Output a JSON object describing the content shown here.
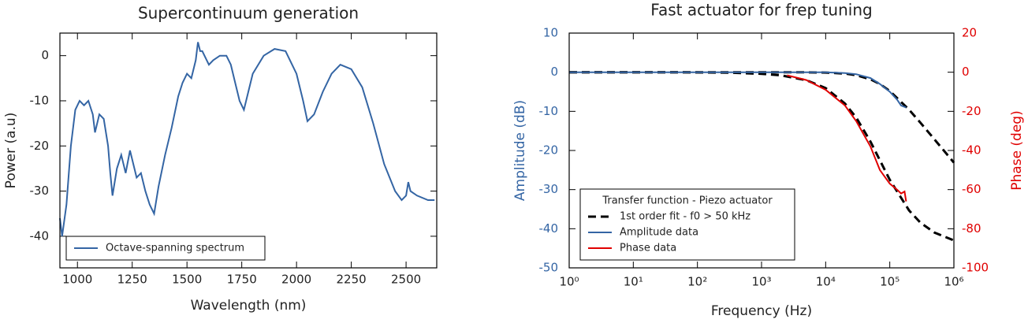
{
  "chart_data": [
    {
      "type": "line",
      "title": "Supercontinuum generation",
      "xlabel": "Wavelength (nm)",
      "ylabel": "Power (a.u)",
      "xlim": [
        920,
        2640
      ],
      "xticks": [
        1000,
        1250,
        1500,
        1750,
        2000,
        2250,
        2500
      ],
      "ylim": [
        -47,
        5
      ],
      "yticks": [
        -40,
        -30,
        -20,
        -10,
        0
      ],
      "legend": "lower left",
      "series": [
        {
          "name": "Octave-spanning spectrum",
          "color": "#3465a4",
          "x": [
            920,
            930,
            950,
            970,
            990,
            1010,
            1030,
            1050,
            1070,
            1080,
            1100,
            1120,
            1140,
            1150,
            1160,
            1180,
            1200,
            1220,
            1240,
            1260,
            1270,
            1290,
            1310,
            1330,
            1350,
            1370,
            1400,
            1430,
            1460,
            1480,
            1500,
            1520,
            1540,
            1550,
            1560,
            1570,
            1590,
            1600,
            1620,
            1650,
            1680,
            1700,
            1720,
            1740,
            1760,
            1780,
            1800,
            1850,
            1900,
            1950,
            2000,
            2030,
            2050,
            2080,
            2120,
            2160,
            2200,
            2250,
            2300,
            2350,
            2400,
            2450,
            2480,
            2500,
            2510,
            2520,
            2550,
            2600,
            2630
          ],
          "values": [
            -36,
            -40,
            -33,
            -20,
            -12,
            -10,
            -11,
            -10,
            -13,
            -17,
            -13,
            -14,
            -20,
            -26,
            -31,
            -25,
            -22,
            -26,
            -21,
            -25,
            -27,
            -26,
            -30,
            -33,
            -35,
            -29,
            -22,
            -16,
            -9,
            -6,
            -4,
            -5,
            -1,
            3,
            1,
            1,
            -1,
            -2,
            -1,
            0,
            0,
            -2,
            -6,
            -10,
            -12,
            -8,
            -4,
            0,
            1.5,
            1,
            -4,
            -10,
            -14.5,
            -13,
            -8,
            -4,
            -2,
            -3,
            -7,
            -15,
            -24,
            -30,
            -32,
            -31,
            -28,
            -30,
            -31,
            -32,
            -32
          ]
        }
      ]
    },
    {
      "type": "line",
      "title": "Fast actuator for frep tuning",
      "xlabel": "Frequency (Hz)",
      "ylabel": "Amplitude (dB)",
      "y2label": "Phase (deg)",
      "xscale": "log",
      "xlim": [
        1,
        1000000
      ],
      "xticks": [
        {
          "value": 1,
          "label": "10⁰"
        },
        {
          "value": 10,
          "label": "10¹"
        },
        {
          "value": 100,
          "label": "10²"
        },
        {
          "value": 1000,
          "label": "10³"
        },
        {
          "value": 10000,
          "label": "10⁴"
        },
        {
          "value": 100000,
          "label": "10⁵"
        },
        {
          "value": 1000000,
          "label": "10⁶"
        }
      ],
      "ylim": [
        -50,
        10
      ],
      "yticks": [
        -50,
        -40,
        -30,
        -20,
        -10,
        0,
        10
      ],
      "ycolor": "#3465a4",
      "y2lim": [
        -100,
        20
      ],
      "y2ticks": [
        -100,
        -80,
        -60,
        -40,
        -20,
        0,
        20
      ],
      "y2color": "#e00000",
      "legend": "lower left",
      "legend_title": "Transfer function - Piezo actuator",
      "series": [
        {
          "name": "1st order fit - f0 > 50 kHz",
          "color": "#000000",
          "dash": true,
          "x": [
            1,
            3,
            10,
            30,
            100,
            300,
            1000,
            2000,
            5000,
            10000,
            20000,
            30000,
            50000,
            70000,
            100000,
            200000,
            300000,
            500000,
            1000000
          ],
          "values": [
            0,
            0,
            0,
            0,
            0,
            0,
            0,
            0,
            -0.02,
            -0.09,
            -0.34,
            -0.75,
            -1.81,
            -3.01,
            -4.8,
            -9.6,
            -12.9,
            -17.2,
            -23.1
          ]
        },
        {
          "color": "#000000",
          "dash": true,
          "axis": "y2",
          "x": [
            1,
            3,
            10,
            30,
            100,
            300,
            1000,
            2000,
            5000,
            10000,
            20000,
            30000,
            50000,
            70000,
            100000,
            200000,
            300000,
            500000,
            1000000
          ],
          "values": [
            0,
            0,
            0,
            0,
            -0.1,
            -0.2,
            -0.8,
            -1.6,
            -4.1,
            -8.1,
            -16,
            -23.2,
            -35.5,
            -45,
            -55,
            -70.7,
            -76.9,
            -82,
            -86
          ]
        },
        {
          "name": "Amplitude data",
          "color": "#3465a4",
          "x": [
            1,
            10,
            100,
            1000,
            5000,
            10000,
            20000,
            30000,
            50000,
            70000,
            100000,
            130000,
            150000,
            180000
          ],
          "values": [
            0,
            0,
            0,
            0,
            0,
            0,
            -0.2,
            -0.5,
            -1.5,
            -3,
            -5,
            -7,
            -8.5,
            -9
          ]
        },
        {
          "name": "Phase data",
          "color": "#e00000",
          "axis": "y2",
          "x": [
            2500,
            5000,
            10000,
            20000,
            30000,
            50000,
            70000,
            100000,
            130000,
            150000,
            170000,
            180000
          ],
          "values": [
            -1.6,
            -4,
            -9,
            -17,
            -25,
            -38,
            -50,
            -57,
            -60,
            -62,
            -61,
            -66
          ]
        }
      ]
    }
  ]
}
